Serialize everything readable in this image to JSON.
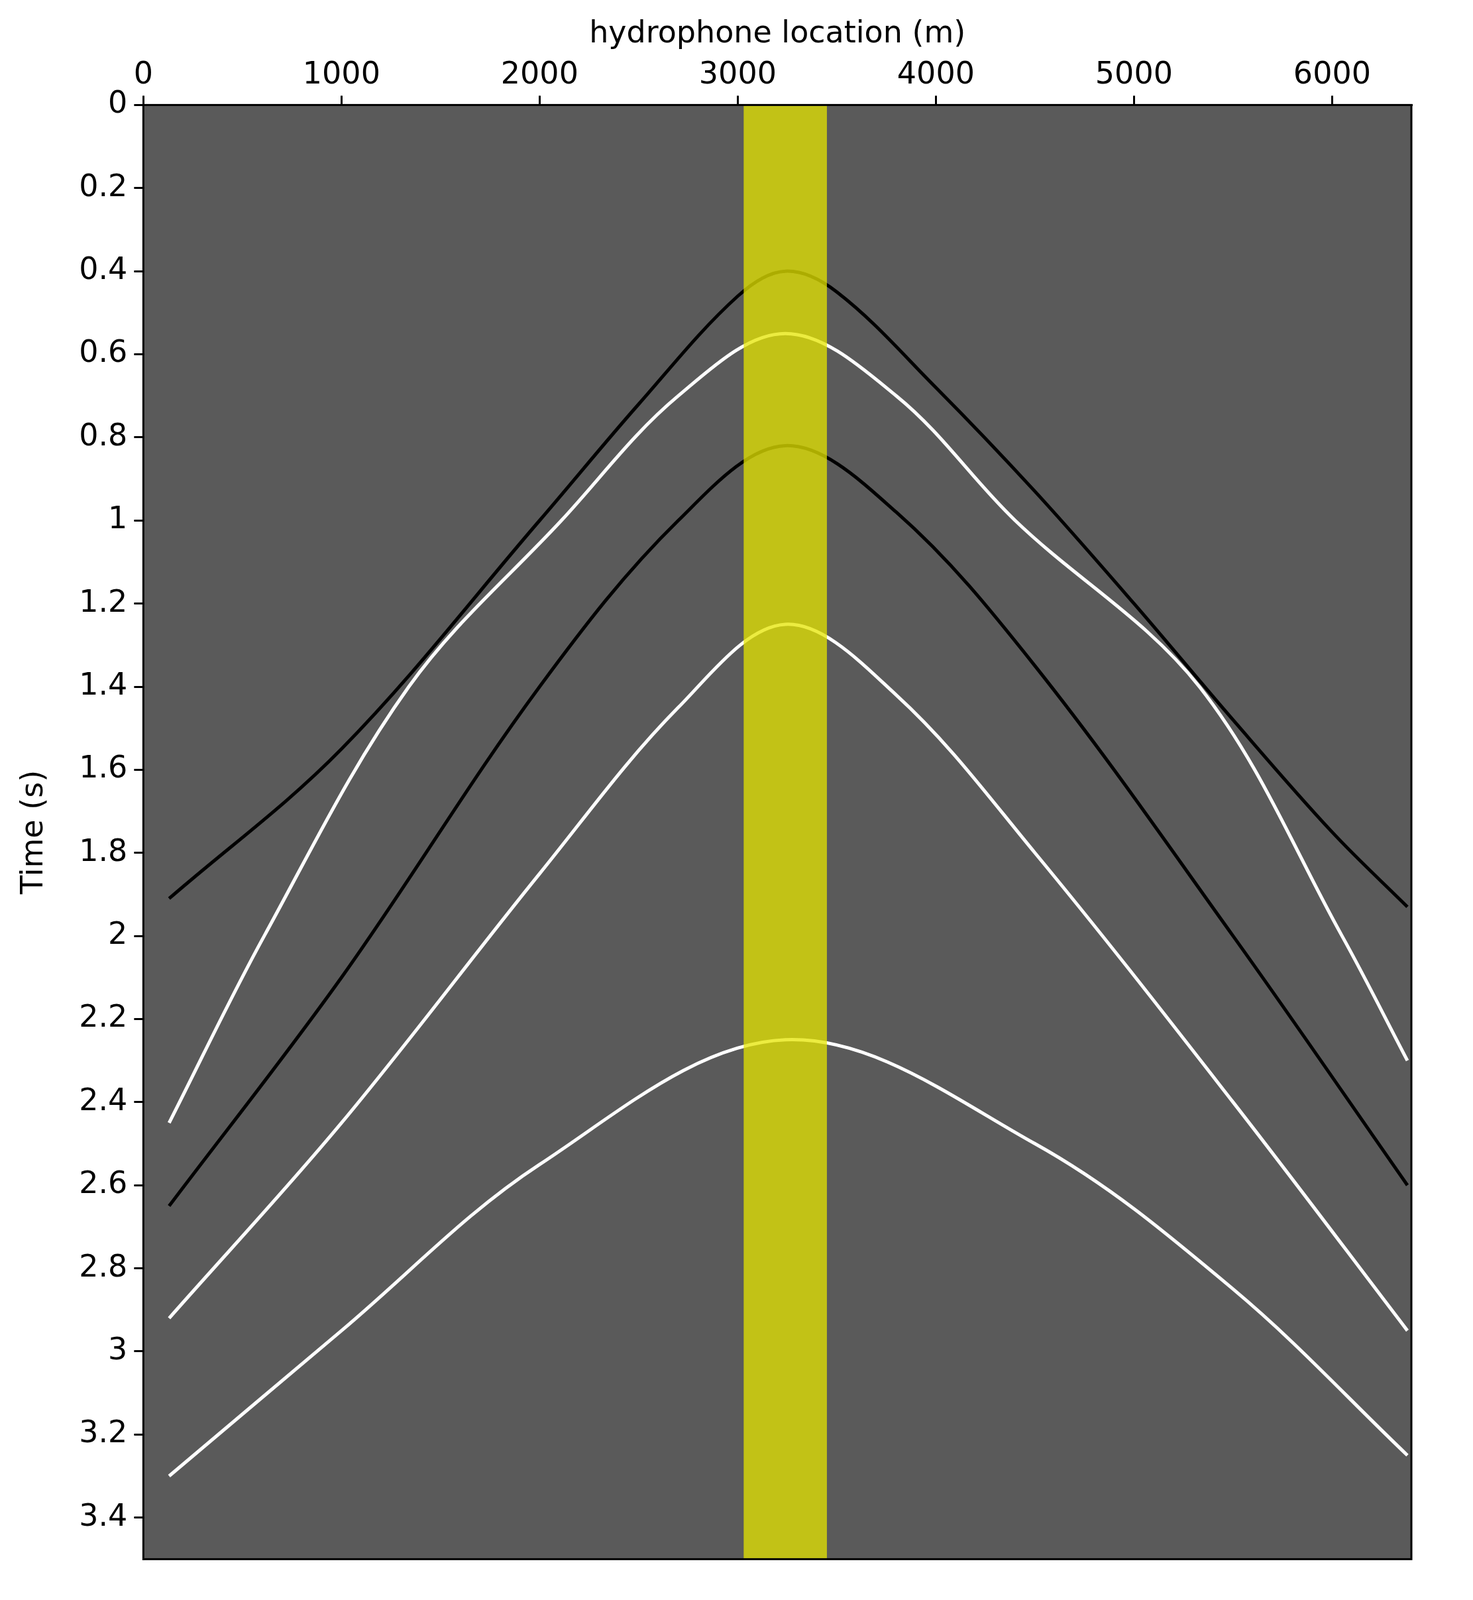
{
  "chart_data": {
    "type": "line",
    "x_label": "hydrophone location (m)",
    "y_label": "Time (s)",
    "xlim": [
      0,
      6400
    ],
    "xticks": [
      0,
      1000,
      2000,
      3000,
      4000,
      5000,
      6000
    ],
    "ylim": [
      0,
      3.5
    ],
    "yticks": [
      0,
      0.2,
      0.4,
      0.6,
      0.8,
      1,
      1.2,
      1.4,
      1.6,
      1.8,
      2,
      2.2,
      2.4,
      2.6,
      2.8,
      3,
      3.2,
      3.4
    ],
    "grid": false,
    "background": "#5a5a5a",
    "highlight": {
      "x": [
        3030,
        3450
      ],
      "color": "#e6e600"
    },
    "series": [
      {
        "color": "#000000",
        "x": [
          130,
          1000,
          2000,
          2500,
          3000,
          3240,
          3500,
          4000,
          4500,
          5000,
          5500,
          6000,
          6380
        ],
        "values": [
          1.91,
          1.55,
          1.0,
          0.72,
          0.46,
          0.4,
          0.45,
          0.68,
          0.93,
          1.2,
          1.48,
          1.75,
          1.93
        ]
      },
      {
        "color": "#ffffff",
        "x": [
          130,
          610,
          1340,
          2110,
          2700,
          3240,
          3800,
          4400,
          5330,
          6050,
          6380
        ],
        "values": [
          2.45,
          2.0,
          1.4,
          1.0,
          0.7,
          0.55,
          0.7,
          1.0,
          1.4,
          2.0,
          2.3
        ]
      },
      {
        "color": "#000000",
        "x": [
          130,
          1000,
          2000,
          2700,
          3240,
          3800,
          4500,
          5500,
          6380
        ],
        "values": [
          2.65,
          2.1,
          1.4,
          1.0,
          0.82,
          0.98,
          1.35,
          2.0,
          2.6
        ]
      },
      {
        "color": "#ffffff",
        "x": [
          130,
          1000,
          2000,
          2700,
          3240,
          3800,
          4500,
          5500,
          6380
        ],
        "values": [
          2.92,
          2.45,
          1.85,
          1.45,
          1.25,
          1.42,
          1.8,
          2.4,
          2.95
        ]
      },
      {
        "color": "#ffffff",
        "x": [
          130,
          1000,
          2000,
          3240,
          4500,
          5500,
          6380
        ],
        "values": [
          3.3,
          2.95,
          2.55,
          2.25,
          2.5,
          2.85,
          3.25
        ]
      }
    ]
  }
}
